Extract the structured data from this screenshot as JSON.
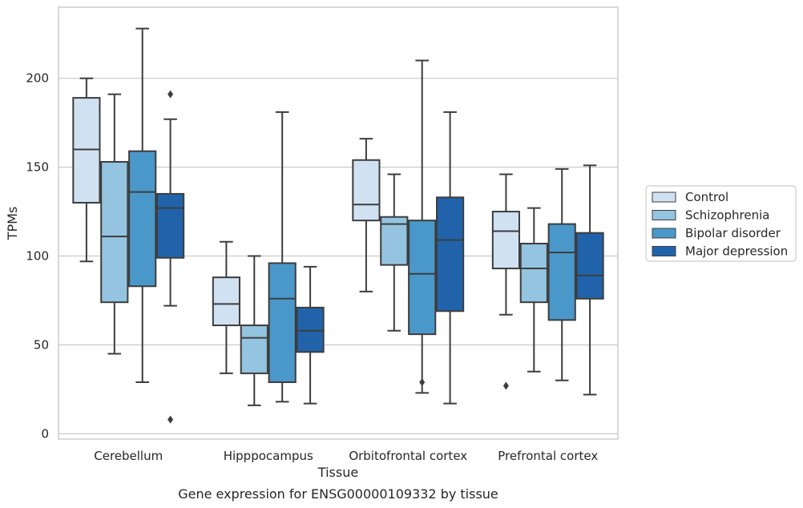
{
  "chart_data": {
    "type": "boxplot",
    "title": "",
    "caption": "Gene expression for ENSG00000109332 by tissue",
    "xlabel": "Tissue",
    "ylabel": "TPMs",
    "ylim": [
      -3,
      240
    ],
    "yticks": [
      0,
      50,
      100,
      150,
      200
    ],
    "grid": true,
    "legend_position": "right",
    "categories": [
      "Cerebellum",
      "Hipppocampus",
      "Orbitofrontal cortex",
      "Prefrontal cortex"
    ],
    "series": [
      {
        "name": "Control",
        "color": "#d0e1f2",
        "boxes": [
          {
            "whisker_low": 97,
            "q1": 130,
            "median": 160,
            "q3": 189,
            "whisker_high": 200,
            "outliers": []
          },
          {
            "whisker_low": 34,
            "q1": 61,
            "median": 73,
            "q3": 88,
            "whisker_high": 108,
            "outliers": []
          },
          {
            "whisker_low": 80,
            "q1": 120,
            "median": 129,
            "q3": 154,
            "whisker_high": 166,
            "outliers": []
          },
          {
            "whisker_low": 67,
            "q1": 93,
            "median": 114,
            "q3": 125,
            "whisker_high": 146,
            "outliers": [
              27
            ]
          }
        ]
      },
      {
        "name": "Schizophrenia",
        "color": "#94c4df",
        "boxes": [
          {
            "whisker_low": 45,
            "q1": 74,
            "median": 111,
            "q3": 153,
            "whisker_high": 191,
            "outliers": []
          },
          {
            "whisker_low": 16,
            "q1": 34,
            "median": 54,
            "q3": 61,
            "whisker_high": 100,
            "outliers": []
          },
          {
            "whisker_low": 58,
            "q1": 95,
            "median": 118,
            "q3": 122,
            "whisker_high": 146,
            "outliers": []
          },
          {
            "whisker_low": 35,
            "q1": 74,
            "median": 93,
            "q3": 107,
            "whisker_high": 127,
            "outliers": []
          }
        ]
      },
      {
        "name": "Bipolar disorder",
        "color": "#4a98c9",
        "boxes": [
          {
            "whisker_low": 29,
            "q1": 83,
            "median": 136,
            "q3": 159,
            "whisker_high": 228,
            "outliers": []
          },
          {
            "whisker_low": 18,
            "q1": 29,
            "median": 76,
            "q3": 96,
            "whisker_high": 181,
            "outliers": []
          },
          {
            "whisker_low": 23,
            "q1": 56,
            "median": 90,
            "q3": 120,
            "whisker_high": 210,
            "outliers": [
              29
            ]
          },
          {
            "whisker_low": 30,
            "q1": 64,
            "median": 102,
            "q3": 118,
            "whisker_high": 149,
            "outliers": []
          }
        ]
      },
      {
        "name": "Major depression",
        "color": "#2163aa",
        "boxes": [
          {
            "whisker_low": 72,
            "q1": 99,
            "median": 127,
            "q3": 135,
            "whisker_high": 177,
            "outliers": [
              191,
              8
            ]
          },
          {
            "whisker_low": 17,
            "q1": 46,
            "median": 58,
            "q3": 71,
            "whisker_high": 94,
            "outliers": []
          },
          {
            "whisker_low": 17,
            "q1": 69,
            "median": 109,
            "q3": 133,
            "whisker_high": 181,
            "outliers": []
          },
          {
            "whisker_low": 22,
            "q1": 76,
            "median": 89,
            "q3": 113,
            "whisker_high": 151,
            "outliers": []
          }
        ]
      }
    ]
  }
}
